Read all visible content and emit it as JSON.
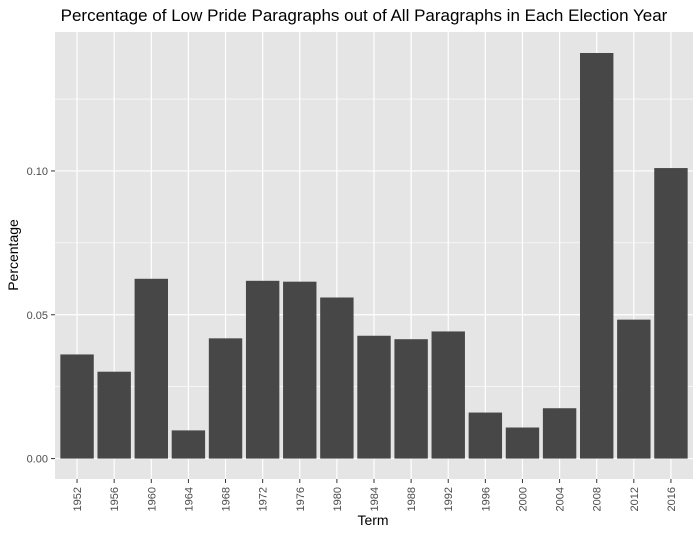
{
  "chart_data": {
    "type": "bar",
    "title": "Percentage of Low Pride Paragraphs out of All Paragraphs in Each Election Year",
    "xlabel": "Term",
    "ylabel": "Percentage",
    "categories": [
      "1952",
      "1956",
      "1960",
      "1964",
      "1968",
      "1972",
      "1976",
      "1980",
      "1984",
      "1988",
      "1992",
      "1996",
      "2000",
      "2004",
      "2008",
      "2012",
      "2016"
    ],
    "values": [
      0.0362,
      0.0302,
      0.0625,
      0.0098,
      0.0418,
      0.0618,
      0.0615,
      0.056,
      0.0427,
      0.0415,
      0.0442,
      0.016,
      0.0108,
      0.0175,
      0.141,
      0.0483,
      0.101
    ],
    "y_ticks": [
      0.0,
      0.05,
      0.1
    ],
    "y_tick_labels": [
      "0.00",
      "0.05",
      "0.10"
    ],
    "ylim": [
      -0.0071,
      0.1483
    ],
    "grid": true,
    "legend": "none",
    "colors": {
      "panel_background": "#e5e5e5",
      "grid_major": "#ffffff",
      "bar_fill": "#474747",
      "tick_text": "#4d4d4d"
    }
  }
}
